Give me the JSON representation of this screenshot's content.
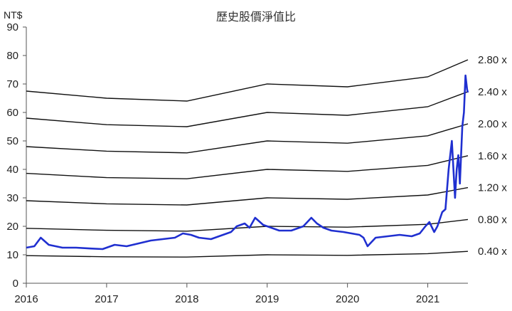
{
  "chart_data": {
    "type": "line",
    "title": "歷史股價淨值比",
    "ylabel": "NT$",
    "xlabel": "",
    "ylim": [
      0,
      90
    ],
    "xlim": [
      2016,
      2021.5
    ],
    "y_ticks": [
      "0",
      "10",
      "20",
      "30",
      "40",
      "50",
      "60",
      "70",
      "80",
      "90"
    ],
    "x_ticks": [
      "2016",
      "2017",
      "2018",
      "2019",
      "2020",
      "2021"
    ],
    "grid": false,
    "price_color": "#1f2fd0",
    "band_color": "#111111",
    "price_series": {
      "x": [
        2016.0,
        2016.1,
        2016.18,
        2016.28,
        2016.45,
        2016.62,
        2016.8,
        2016.95,
        2017.1,
        2017.25,
        2017.4,
        2017.55,
        2017.7,
        2017.85,
        2017.95,
        2018.05,
        2018.15,
        2018.3,
        2018.45,
        2018.55,
        2018.62,
        2018.72,
        2018.78,
        2018.85,
        2018.95,
        2019.05,
        2019.15,
        2019.3,
        2019.45,
        2019.55,
        2019.62,
        2019.7,
        2019.8,
        2019.95,
        2020.05,
        2020.15,
        2020.2,
        2020.25,
        2020.35,
        2020.5,
        2020.65,
        2020.8,
        2020.9,
        2020.97,
        2021.02,
        2021.08,
        2021.12,
        2021.18,
        2021.22,
        2021.26,
        2021.3,
        2021.34,
        2021.36,
        2021.38,
        2021.4,
        2021.43,
        2021.45,
        2021.47,
        2021.49,
        2021.5
      ],
      "y": [
        12.5,
        13,
        16,
        13.5,
        12.5,
        12.5,
        12.2,
        12,
        13.5,
        13,
        14,
        15,
        15.5,
        16,
        17.5,
        17,
        16,
        15.5,
        17,
        18,
        20,
        21,
        19.5,
        23,
        20.5,
        19.5,
        18.5,
        18.5,
        20,
        23,
        21,
        19.5,
        18.5,
        18,
        17.5,
        17,
        16,
        13,
        16,
        16.5,
        17,
        16.5,
        17.5,
        20,
        21.5,
        18,
        20,
        25,
        26,
        40,
        50,
        30,
        40,
        45,
        35,
        55,
        60,
        73,
        68,
        67
      ]
    },
    "bands": [
      {
        "label": "2.80 x",
        "x": [
          2016,
          2017,
          2018,
          2019,
          2020,
          2021,
          2021.5
        ],
        "y": [
          67.5,
          65,
          64,
          70,
          69,
          72.5,
          78.5
        ]
      },
      {
        "label": "2.40 x",
        "x": [
          2016,
          2017,
          2018,
          2019,
          2020,
          2021,
          2021.5
        ],
        "y": [
          58,
          55.7,
          55,
          60,
          59,
          62,
          67.3
        ]
      },
      {
        "label": "2.00 x",
        "x": [
          2016,
          2017,
          2018,
          2019,
          2020,
          2021,
          2021.5
        ],
        "y": [
          48,
          46.4,
          45.8,
          50,
          49.2,
          51.8,
          56
        ]
      },
      {
        "label": "1.60 x",
        "x": [
          2016,
          2017,
          2018,
          2019,
          2020,
          2021,
          2021.5
        ],
        "y": [
          38.6,
          37.1,
          36.7,
          40,
          39.3,
          41.4,
          44.8
        ]
      },
      {
        "label": "1.20 x",
        "x": [
          2016,
          2017,
          2018,
          2019,
          2020,
          2021,
          2021.5
        ],
        "y": [
          29,
          27.9,
          27.5,
          30,
          29.5,
          31,
          33.6
        ]
      },
      {
        "label": "0.80 x",
        "x": [
          2016,
          2017,
          2018,
          2019,
          2020,
          2021,
          2021.5
        ],
        "y": [
          19.3,
          18.6,
          18.3,
          20,
          19.7,
          20.7,
          22.4
        ]
      },
      {
        "label": "0.40 x",
        "x": [
          2016,
          2017,
          2018,
          2019,
          2020,
          2021,
          2021.5
        ],
        "y": [
          9.7,
          9.3,
          9.2,
          10,
          9.8,
          10.4,
          11.2
        ]
      }
    ]
  }
}
